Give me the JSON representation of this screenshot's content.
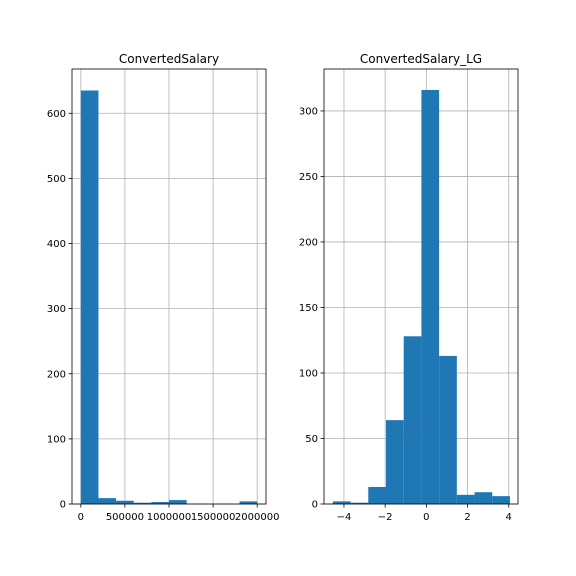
{
  "chart_data": [
    {
      "type": "bar",
      "title": "ConvertedSalary",
      "xlabel": "",
      "ylabel": "",
      "grid": true,
      "color": "#1f77b4",
      "xlim": [
        -100000,
        2100000
      ],
      "ylim": [
        0,
        668
      ],
      "bin_edges": [
        0,
        200000,
        400000,
        600000,
        800000,
        1000000,
        1200000,
        1400000,
        1600000,
        1800000,
        2000000
      ],
      "values": [
        635,
        9,
        5,
        2,
        3,
        6,
        0,
        0,
        0,
        4
      ],
      "xticks": [
        0,
        500000,
        1000000,
        1500000,
        2000000
      ],
      "xtick_labels": [
        "0",
        "500000",
        "1000000",
        "1500000",
        "2000000"
      ],
      "yticks": [
        0,
        100,
        200,
        300,
        400,
        500,
        600
      ],
      "ytick_labels": [
        "0",
        "100",
        "200",
        "300",
        "400",
        "500",
        "600"
      ]
    },
    {
      "type": "bar",
      "title": "ConvertedSalary_LG",
      "xlabel": "",
      "ylabel": "",
      "grid": true,
      "color": "#1f77b4",
      "xlim": [
        -4.97,
        4.45
      ],
      "ylim": [
        0,
        332
      ],
      "bin_edges": [
        -4.54,
        -3.68,
        -2.82,
        -1.96,
        -1.1,
        -0.24,
        0.62,
        1.48,
        2.34,
        3.2,
        4.06
      ],
      "values": [
        2,
        1,
        13,
        64,
        128,
        316,
        113,
        7,
        9,
        6
      ],
      "xticks": [
        -4,
        -2,
        0,
        2,
        4
      ],
      "xtick_labels": [
        "−4",
        "−2",
        "0",
        "2",
        "4"
      ],
      "yticks": [
        0,
        50,
        100,
        150,
        200,
        250,
        300
      ],
      "ytick_labels": [
        "0",
        "50",
        "100",
        "150",
        "200",
        "250",
        "300"
      ]
    }
  ]
}
